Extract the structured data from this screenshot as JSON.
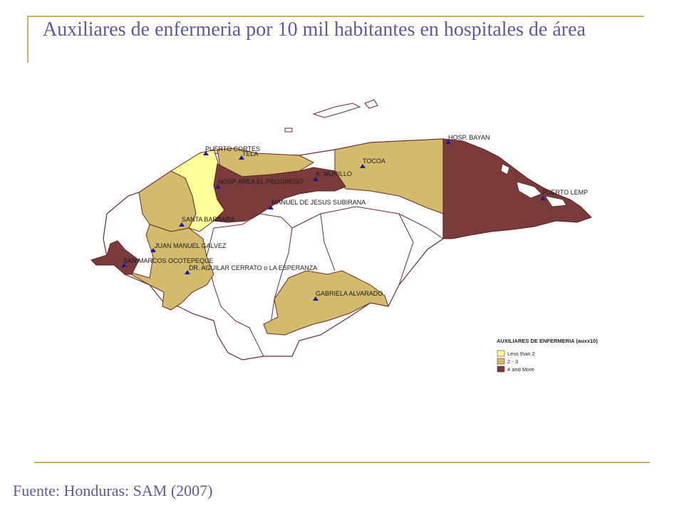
{
  "title": "Auxiliares de enfermeria por 10 mil habitantes en hospitales de área",
  "source": "Fuente: Honduras: SAM (2007)",
  "colors": {
    "less_than_2": "#ffff99",
    "two_to_three": "#d2bb6c",
    "four_and_more": "#7b3b3b",
    "outline": "#6b2a2a",
    "marker": "#1a1aa0"
  },
  "legend": {
    "title": "AUXILIARES DE ENFERMERIA (auxx10)",
    "items": [
      {
        "label": "Less than 2",
        "color": "#ffff99"
      },
      {
        "label": "2 - 3",
        "color": "#d2bb6c"
      },
      {
        "label": "4 and More",
        "color": "#7b3b3b"
      }
    ]
  },
  "hospitals": [
    {
      "name": "PUERTO CORTES"
    },
    {
      "name": "TELA"
    },
    {
      "name": "TOCOA"
    },
    {
      "name": "HOSP. BAYAN"
    },
    {
      "name": "A. MURILLO"
    },
    {
      "name": "HOSP AREA EL PROGRESO"
    },
    {
      "name": "PUERTO LEMP"
    },
    {
      "name": "MANUEL DE JESUS SUBIRANA"
    },
    {
      "name": "SANTA BARBARA"
    },
    {
      "name": "JUAN MANUEL GALVEZ"
    },
    {
      "name": "SAN MARCOS OCOTEPEQUE"
    },
    {
      "name": "DR. AGUILAR CERRATO o LA ESPERANZA"
    },
    {
      "name": "GABRIELA ALVARADO"
    }
  ]
}
